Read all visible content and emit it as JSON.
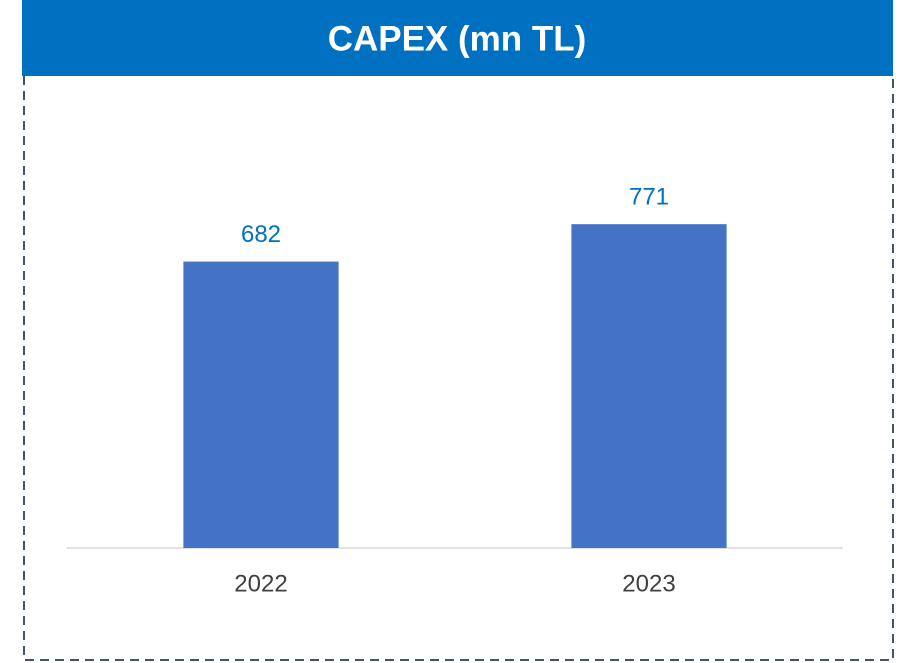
{
  "chart_data": {
    "type": "bar",
    "title": "CAPEX (mn TL)",
    "categories": [
      "2022",
      "2023"
    ],
    "values": [
      682,
      771
    ],
    "color": "#4472c4",
    "ylim": [
      0,
      800
    ],
    "data_labels": true
  }
}
